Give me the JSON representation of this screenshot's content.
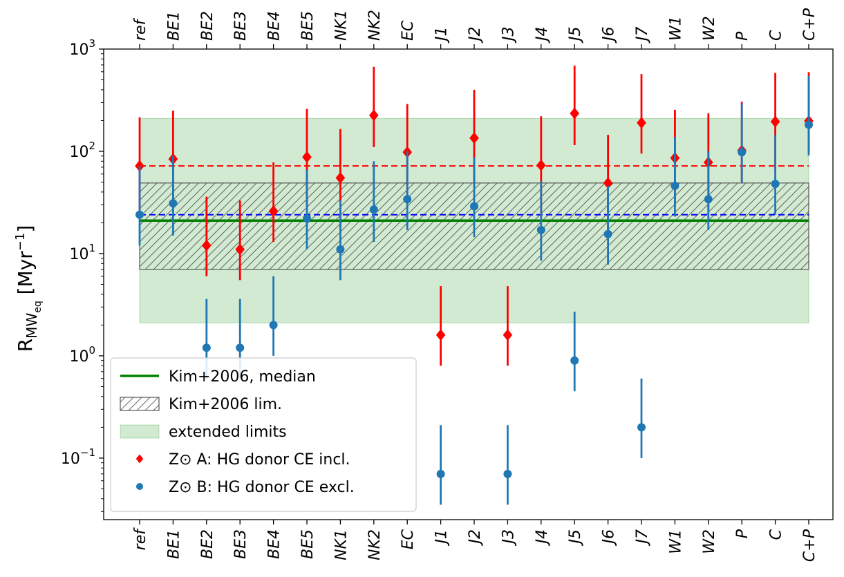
{
  "chart_data": {
    "type": "scatter",
    "categories": [
      "ref",
      "BE1",
      "BE2",
      "BE3",
      "BE4",
      "BE5",
      "NK1",
      "NK2",
      "EC",
      "J1",
      "J2",
      "J3",
      "J4",
      "J5",
      "J6",
      "J7",
      "W1",
      "W2",
      "P",
      "C",
      "C+P"
    ],
    "ylabel": {
      "main": "R",
      "sub1": "MW",
      "sub2": "eq",
      "unit": "[Myr",
      "unit_exp": "−1",
      "unit_close": "]"
    },
    "yscale": "log",
    "ylim": [
      0.025,
      1000
    ],
    "y_ticks": [
      {
        "base": "10",
        "exp": "−1",
        "value": 0.1
      },
      {
        "base": "10",
        "exp": "0",
        "value": 1
      },
      {
        "base": "10",
        "exp": "1",
        "value": 10
      },
      {
        "base": "10",
        "exp": "2",
        "value": 100
      },
      {
        "base": "10",
        "exp": "3",
        "value": 1000
      }
    ],
    "category_labels_top_and_bottom": true,
    "median_line": {
      "value": 21,
      "color": "#008000"
    },
    "kim_limits": [
      7,
      49
    ],
    "extended_limits": [
      2.1,
      210
    ],
    "series": [
      {
        "name": "Z⊙ A: HG donor CE incl.",
        "color": "#ff0000",
        "marker": "diamond",
        "reference_value": 72,
        "points": [
          {
            "y": 72,
            "lo": 25,
            "hi": 215
          },
          {
            "y": 84,
            "lo": 28,
            "hi": 250
          },
          {
            "y": 12,
            "lo": 6,
            "hi": 36
          },
          {
            "y": 11,
            "lo": 5.5,
            "hi": 33
          },
          {
            "y": 26,
            "lo": 13,
            "hi": 78
          },
          {
            "y": 88,
            "lo": 29,
            "hi": 260
          },
          {
            "y": 55,
            "lo": 18,
            "hi": 165
          },
          {
            "y": 225,
            "lo": 110,
            "hi": 670
          },
          {
            "y": 98,
            "lo": 33,
            "hi": 290
          },
          {
            "y": 1.6,
            "lo": 0.8,
            "hi": 4.8
          },
          {
            "y": 135,
            "lo": 45,
            "hi": 400
          },
          {
            "y": 1.6,
            "lo": 0.8,
            "hi": 4.8
          },
          {
            "y": 73,
            "lo": 24,
            "hi": 220
          },
          {
            "y": 235,
            "lo": 115,
            "hi": 690
          },
          {
            "y": 49,
            "lo": 16,
            "hi": 145
          },
          {
            "y": 190,
            "lo": 95,
            "hi": 570
          },
          {
            "y": 86,
            "lo": 29,
            "hi": 255
          },
          {
            "y": 78,
            "lo": 26,
            "hi": 235
          },
          {
            "y": 102,
            "lo": 51,
            "hi": 305
          },
          {
            "y": 195,
            "lo": 65,
            "hi": 585
          },
          {
            "y": 198,
            "lo": 99,
            "hi": 595
          }
        ]
      },
      {
        "name": "Z⊙ B: HG donor CE excl.",
        "color": "#1f77b4",
        "marker": "circle",
        "reference_value": 24,
        "points": [
          {
            "y": 24,
            "lo": 12,
            "hi": 72
          },
          {
            "y": 31,
            "lo": 15,
            "hi": 90
          },
          {
            "y": 1.2,
            "lo": 0.6,
            "hi": 3.6
          },
          {
            "y": 1.2,
            "lo": 0.6,
            "hi": 3.6
          },
          {
            "y": 2.0,
            "lo": 1.0,
            "hi": 6.0
          },
          {
            "y": 22,
            "lo": 11,
            "hi": 66
          },
          {
            "y": 11,
            "lo": 5.5,
            "hi": 33
          },
          {
            "y": 27,
            "lo": 13,
            "hi": 80
          },
          {
            "y": 34,
            "lo": 17,
            "hi": 100
          },
          {
            "y": 0.07,
            "lo": 0.035,
            "hi": 0.21
          },
          {
            "y": 29,
            "lo": 14.5,
            "hi": 87
          },
          {
            "y": 0.07,
            "lo": 0.035,
            "hi": 0.21
          },
          {
            "y": 17,
            "lo": 8.5,
            "hi": 51
          },
          {
            "y": 0.9,
            "lo": 0.45,
            "hi": 2.7
          },
          {
            "y": 15.5,
            "lo": 7.8,
            "hi": 46
          },
          {
            "y": 0.2,
            "lo": 0.1,
            "hi": 0.6
          },
          {
            "y": 46,
            "lo": 23,
            "hi": 138
          },
          {
            "y": 34,
            "lo": 17,
            "hi": 100
          },
          {
            "y": 98,
            "lo": 49,
            "hi": 294
          },
          {
            "y": 48,
            "lo": 24,
            "hi": 144
          },
          {
            "y": 182,
            "lo": 91,
            "hi": 546
          }
        ]
      }
    ],
    "legend": {
      "position": "lower-left",
      "entries": [
        {
          "label": "Kim+2006, median",
          "kind": "line"
        },
        {
          "label": "Kim+2006 lim.",
          "kind": "hatch"
        },
        {
          "label": "extended limits",
          "kind": "fill"
        },
        {
          "label": "Z⊙ A: HG donor CE incl.",
          "kind": "diamond"
        },
        {
          "label": "Z⊙ B: HG donor CE excl.",
          "kind": "circle"
        }
      ]
    }
  }
}
